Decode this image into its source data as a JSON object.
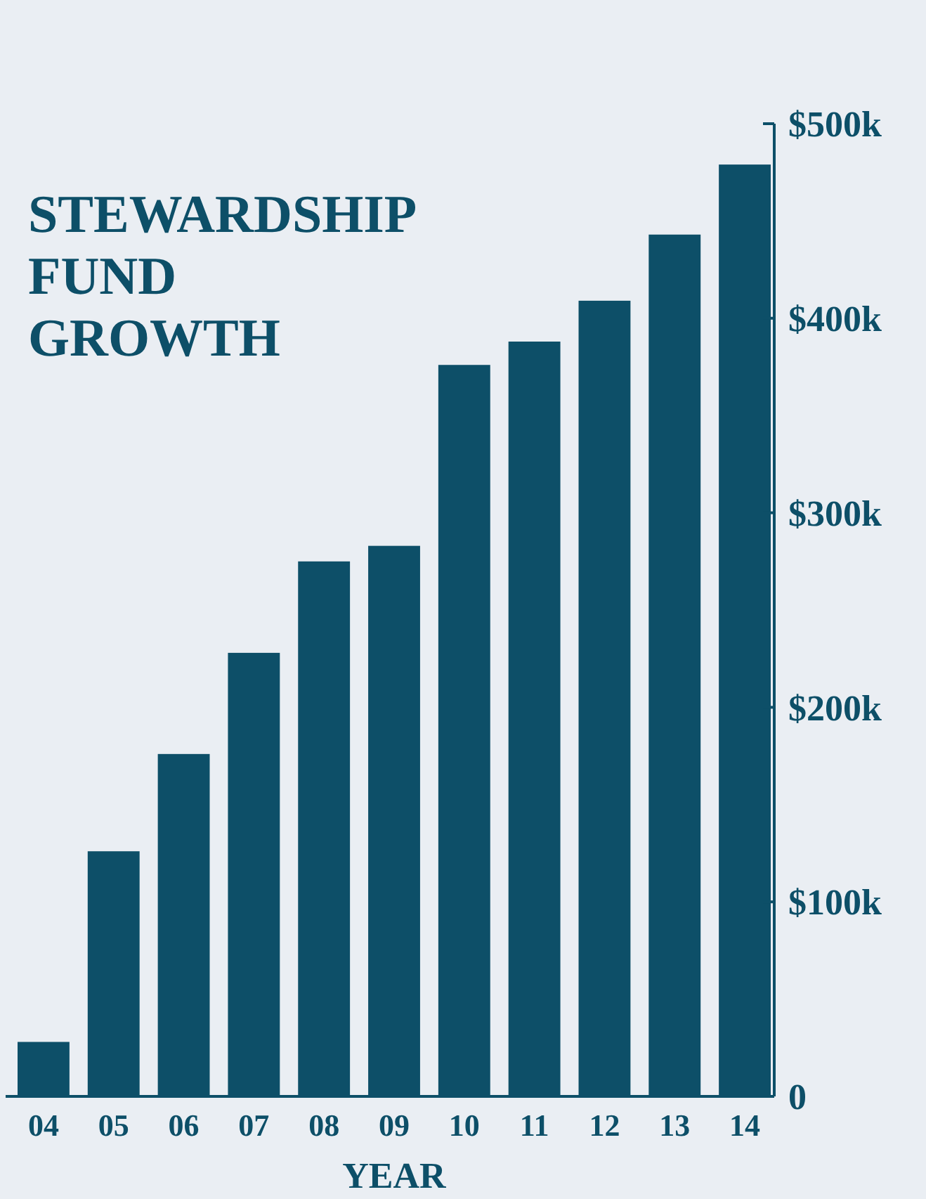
{
  "chart_data": {
    "type": "bar",
    "title": "STEWARDSHIP\nFUND\nGROWTH",
    "xlabel": "YEAR",
    "categories": [
      "04",
      "05",
      "06",
      "07",
      "08",
      "09",
      "10",
      "11",
      "12",
      "13",
      "14"
    ],
    "values": [
      28,
      126,
      176,
      228,
      275,
      283,
      376,
      388,
      409,
      443,
      479
    ],
    "color": "#0d4f68",
    "ylim": [
      0,
      500
    ],
    "yticks": [
      0,
      {
        "value": 100,
        "label": "$100k"
      },
      {
        "value": 200,
        "label": "$200k"
      },
      {
        "value": 300,
        "label": "$300k"
      },
      {
        "value": 400,
        "label": "$400k"
      },
      {
        "value": 500,
        "label": "$500k"
      }
    ],
    "grid": false
  }
}
